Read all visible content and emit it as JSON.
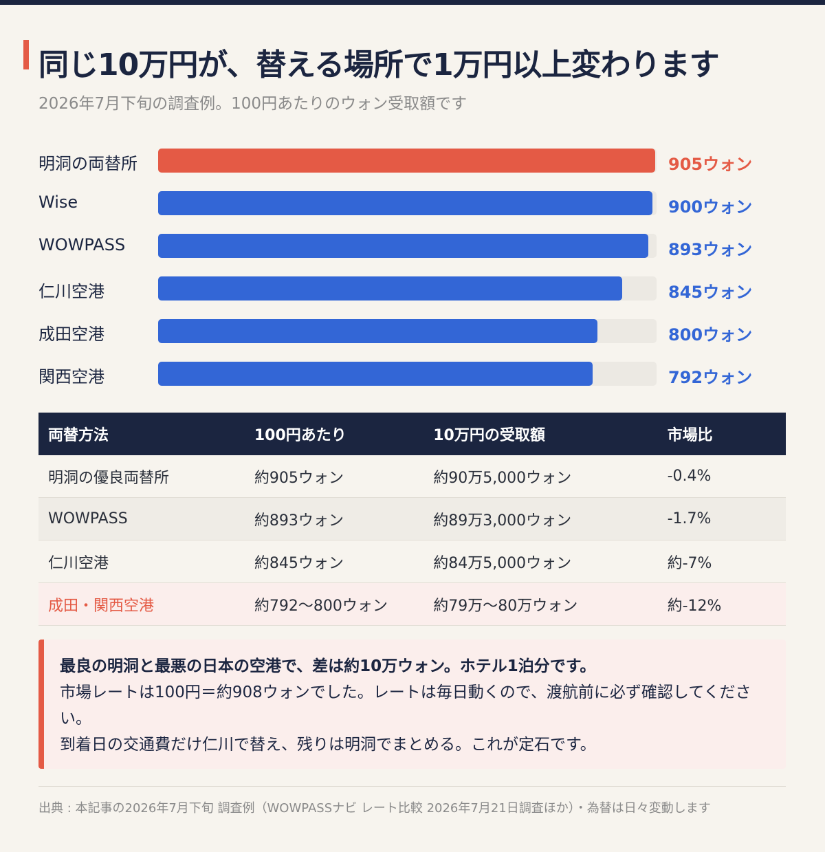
{
  "title": "同じ10万円が、替える場所で1万円以上変わります",
  "subtitle": "2026年7月下旬の調査例。100円あたりのウォン受取額です",
  "chart_data": {
    "type": "bar",
    "orientation": "horizontal",
    "categories": [
      "明洞の両替所",
      "Wise",
      "WOWPASS",
      "仁川空港",
      "成田空港",
      "関西空港"
    ],
    "values": [
      905,
      900,
      893,
      845,
      800,
      792
    ],
    "value_labels": [
      "905ウォン",
      "900ウォン",
      "893ウォン",
      "845ウォン",
      "800ウォン",
      "792ウォン"
    ],
    "xlim": [
      0,
      908
    ],
    "highlight_index": 0,
    "colors": {
      "highlight": "#e45a45",
      "default": "#3366d6",
      "track": "#ece9e3"
    }
  },
  "table": {
    "headers": [
      "両替方法",
      "100円あたり",
      "10万円の受取額",
      "市場比"
    ],
    "rows": [
      [
        "明洞の優良両替所",
        "約905ウォン",
        "約90万5,000ウォン",
        "-0.4%"
      ],
      [
        "WOWPASS",
        "約893ウォン",
        "約89万3,000ウォン",
        "-1.7%"
      ],
      [
        "仁川空港",
        "約845ウォン",
        "約84万5,000ウォン",
        "約-7%"
      ],
      [
        "成田・関西空港",
        "約792〜800ウォン",
        "約79万〜80万ウォン",
        "約-12%"
      ]
    ]
  },
  "note": {
    "headline": "最良の明洞と最悪の日本の空港で、差は約10万ウォン。ホテル1泊分です。",
    "line1": "市場レートは100円＝約908ウォンでした。レートは毎日動くので、渡航前に必ず確認してください。",
    "line2": "到着日の交通費だけ仁川で替え、残りは明洞でまとめる。これが定石です。"
  },
  "source": "出典 : 本記事の2026年7月下旬 調査例（WOWPASSナビ レート比較 2026年7月21日調査ほか）・為替は日々変動します",
  "colors": {
    "accent": "#e45a45",
    "navy": "#1b2540",
    "blue": "#3366d6",
    "background": "#f7f4ee"
  }
}
